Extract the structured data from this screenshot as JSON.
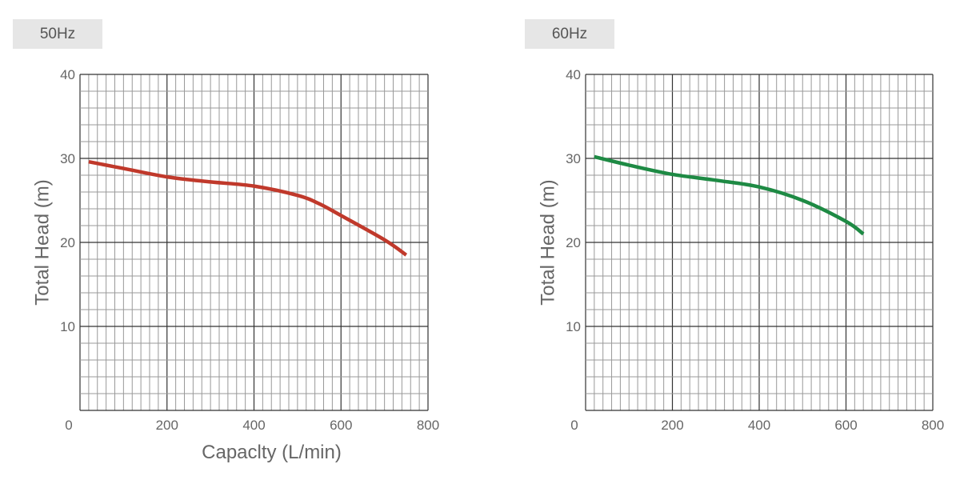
{
  "chart_data": [
    {
      "type": "line",
      "tab_label": "50Hz",
      "xlabel": "Capaclty (L/min)",
      "ylabel": "Total Head (m)",
      "xlim": [
        0,
        800
      ],
      "ylim": [
        0,
        40
      ],
      "x_ticks": [
        "0",
        "200",
        "400",
        "600",
        "800"
      ],
      "y_ticks": [
        "10",
        "20",
        "30",
        "40"
      ],
      "grid": true,
      "series": [
        {
          "color": "#c0392b",
          "x": [
            20,
            100,
            200,
            300,
            400,
            500,
            550,
            600,
            700,
            750
          ],
          "y": [
            29.6,
            28.8,
            27.8,
            27.2,
            26.7,
            25.6,
            24.6,
            23.2,
            20.3,
            18.5
          ]
        }
      ]
    },
    {
      "type": "line",
      "tab_label": "60Hz",
      "xlabel": "",
      "ylabel": "Total Head (m)",
      "xlim": [
        0,
        800
      ],
      "ylim": [
        0,
        40
      ],
      "x_ticks": [
        "0",
        "200",
        "400",
        "600",
        "800"
      ],
      "y_ticks": [
        "10",
        "20",
        "30",
        "40"
      ],
      "grid": true,
      "series": [
        {
          "color": "#1e8a44",
          "x": [
            20,
            100,
            200,
            300,
            400,
            500,
            600,
            640
          ],
          "y": [
            30.2,
            29.2,
            28.1,
            27.4,
            26.6,
            25.0,
            22.5,
            21.0
          ]
        }
      ]
    }
  ]
}
